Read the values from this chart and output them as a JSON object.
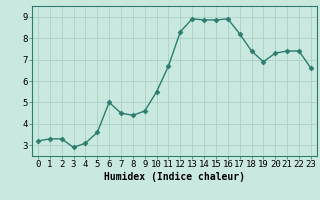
{
  "x": [
    0,
    1,
    2,
    3,
    4,
    5,
    6,
    7,
    8,
    9,
    10,
    11,
    12,
    13,
    14,
    15,
    16,
    17,
    18,
    19,
    20,
    21,
    22,
    23
  ],
  "y": [
    3.2,
    3.3,
    3.3,
    2.9,
    3.1,
    3.6,
    5.0,
    4.5,
    4.4,
    4.6,
    5.5,
    6.7,
    8.3,
    8.9,
    8.85,
    8.85,
    8.9,
    8.2,
    7.4,
    6.9,
    7.3,
    7.4,
    7.4,
    6.6
  ],
  "line_color": "#2d7d6e",
  "marker": "D",
  "marker_size": 2.5,
  "line_width": 1.0,
  "bg_color": "#c8e8e0",
  "grid_color": "#b0d4cc",
  "xlabel": "Humidex (Indice chaleur)",
  "xlabel_fontsize": 7,
  "tick_fontsize": 6.5,
  "ylim": [
    2.5,
    9.5
  ],
  "xlim": [
    -0.5,
    23.5
  ],
  "yticks": [
    3,
    4,
    5,
    6,
    7,
    8,
    9
  ],
  "xticks": [
    0,
    1,
    2,
    3,
    4,
    5,
    6,
    7,
    8,
    9,
    10,
    11,
    12,
    13,
    14,
    15,
    16,
    17,
    18,
    19,
    20,
    21,
    22,
    23
  ]
}
